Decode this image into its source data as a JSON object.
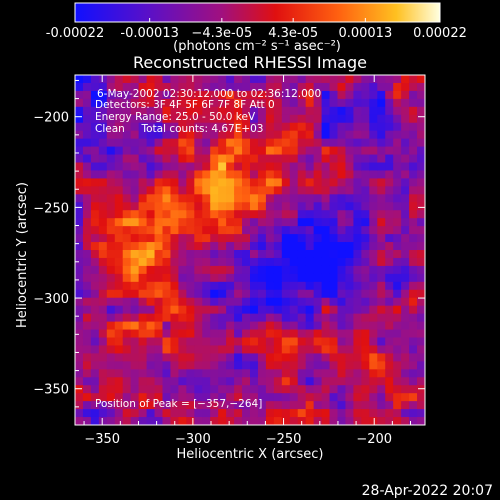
{
  "chart_data": {
    "type": "heatmap",
    "title": "Reconstructed RHESSI Image",
    "xlabel": "Heliocentric X (arcsec)",
    "ylabel": "Heliocentric Y (arcsec)",
    "xlim": [
      -365,
      -172
    ],
    "ylim": [
      -370,
      -177
    ],
    "x_ticks": [
      -350,
      -300,
      -250,
      -200
    ],
    "y_ticks": [
      -200,
      -250,
      -300,
      -350
    ],
    "x_tick_labels": [
      "−350",
      "−300",
      "−250",
      "−200"
    ],
    "y_tick_labels": [
      "−200",
      "−250",
      "−300",
      "−350"
    ],
    "colorbar": {
      "range": [
        -0.00022,
        0.00022
      ],
      "tick_values": [
        -0.00022,
        -0.00013,
        -4.3e-05,
        4.3e-05,
        0.00013,
        0.00022
      ],
      "tick_labels": [
        "-0.00022",
        "-0.00013",
        "−4.3e-05",
        "4.3e-05",
        "0.00013",
        "0.00022"
      ],
      "unit_label": "(photons cm⁻² s⁻¹ asec⁻²)",
      "colors": [
        "#1010ff",
        "#5a10c8",
        "#a01080",
        "#e01010",
        "#ff6010",
        "#ffc020",
        "#ffffe0"
      ]
    },
    "overlay_text": [
      "6-May-2002 02:30:12.000 to 02:36:12.000",
      "Detectors: 3F 4F 5F 6F 7F 8F Att 0",
      "Energy Range: 25.0 - 50.0 keV",
      "Clean     Total counts: 4.67E+03"
    ],
    "peak_label": "Position of Peak = [−357,−264]",
    "peak_position": [
      -357,
      -264
    ],
    "grid": false,
    "legend": "colorbar-top"
  },
  "footer": {
    "timestamp": "28-Apr-2022 20:07"
  }
}
